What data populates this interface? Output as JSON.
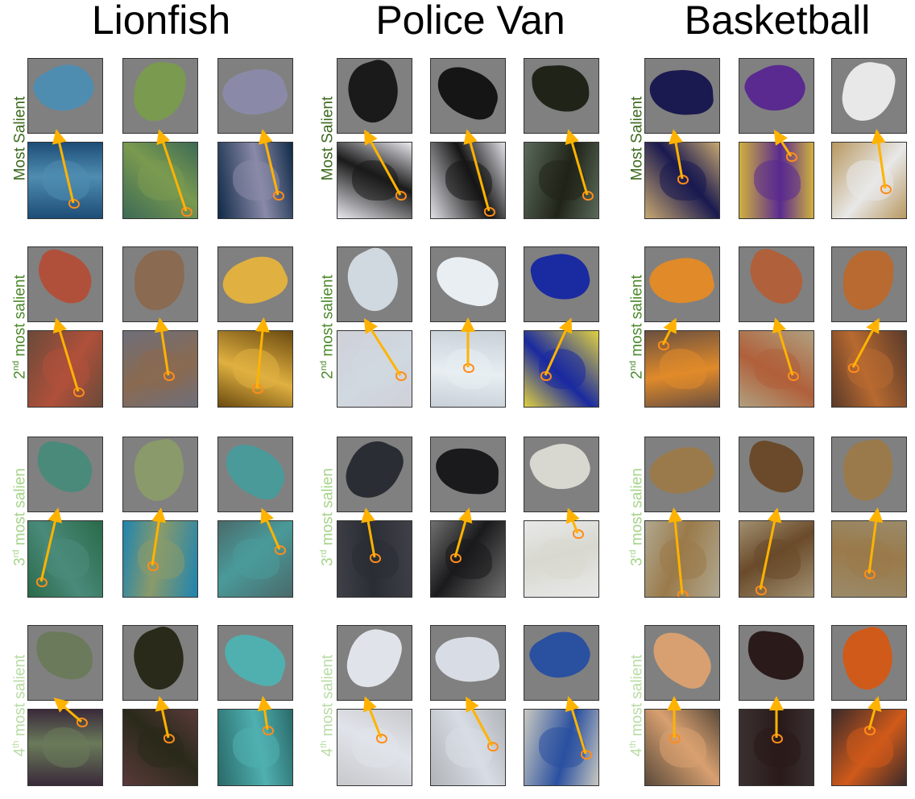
{
  "columns": [
    {
      "title": "Lionfish",
      "theme": "lionfish"
    },
    {
      "title": "Police Van",
      "theme": "van"
    },
    {
      "title": "Basketball",
      "theme": "ball"
    }
  ],
  "rows": [
    {
      "prefix": "Most Salient",
      "sup": "",
      "suffix": "",
      "color": "#3c6a1f"
    },
    {
      "prefix": "2",
      "sup": "nd",
      "suffix": " most salient",
      "color": "#4c8a2c"
    },
    {
      "prefix": "3",
      "sup": "rd",
      "suffix": " most salien",
      "color": "#a6d48a"
    },
    {
      "prefix": "4",
      "sup": "th",
      "suffix": " most salient",
      "color": "#b8dca4"
    }
  ],
  "colors": {
    "arrow": "#ffb300",
    "marker": "#ff8c1a",
    "patch_background": "#808080"
  },
  "tiles": {
    "lionfish": {
      "photo_bg": [
        "#1d4d78",
        "#3d6a55",
        "#0f2a48",
        "#6a4a3a",
        "#6f6f7a",
        "#6a4a10",
        "#2a6a4a",
        "#1e84b0",
        "#4a6a6a",
        "#3a2a3a",
        "#5a3a3a",
        "#2a6a6a"
      ],
      "patch_fg": [
        "#4f8db0",
        "#7a9a50",
        "#8a8aa8",
        "#b0503a",
        "#8a6a50",
        "#e0b040",
        "#4a8a7a",
        "#8a9a6a",
        "#4a9a9a",
        "#6a7a5a",
        "#2a2a1a",
        "#50b0b0"
      ]
    },
    "van": {
      "photo_bg": [
        "#e8e8ee",
        "#e0e0e6",
        "#5a6a5a",
        "#d0d0d8",
        "#c8d0d8",
        "#e0d040",
        "#404048",
        "#707070",
        "#e8e8e8",
        "#c8c8cc",
        "#b0b4b8",
        "#c8c8c0"
      ],
      "patch_fg": [
        "#1a1a1a",
        "#151515",
        "#202418",
        "#d0d8e0",
        "#e8eef2",
        "#1a2aa0",
        "#2a2e34",
        "#1a1a1c",
        "#d8d8d0",
        "#e0e4ea",
        "#d8dce4",
        "#2a50a0"
      ]
    },
    "ball": {
      "photo_bg": [
        "#c8a870",
        "#d0b040",
        "#b89860",
        "#6a5040",
        "#b0a080",
        "#5a3a2a",
        "#b0a890",
        "#a09070",
        "#9a8a6a",
        "#5a4a3a",
        "#3a3030",
        "#3a2a2a"
      ],
      "patch_fg": [
        "#1a1a50",
        "#5a2a90",
        "#e8e8e8",
        "#e08a2a",
        "#b0603a",
        "#b86a30",
        "#9a7a4a",
        "#6a4a2a",
        "#9a7a4a",
        "#d8a070",
        "#2a1a1a",
        "#d05a1a"
      ]
    }
  }
}
